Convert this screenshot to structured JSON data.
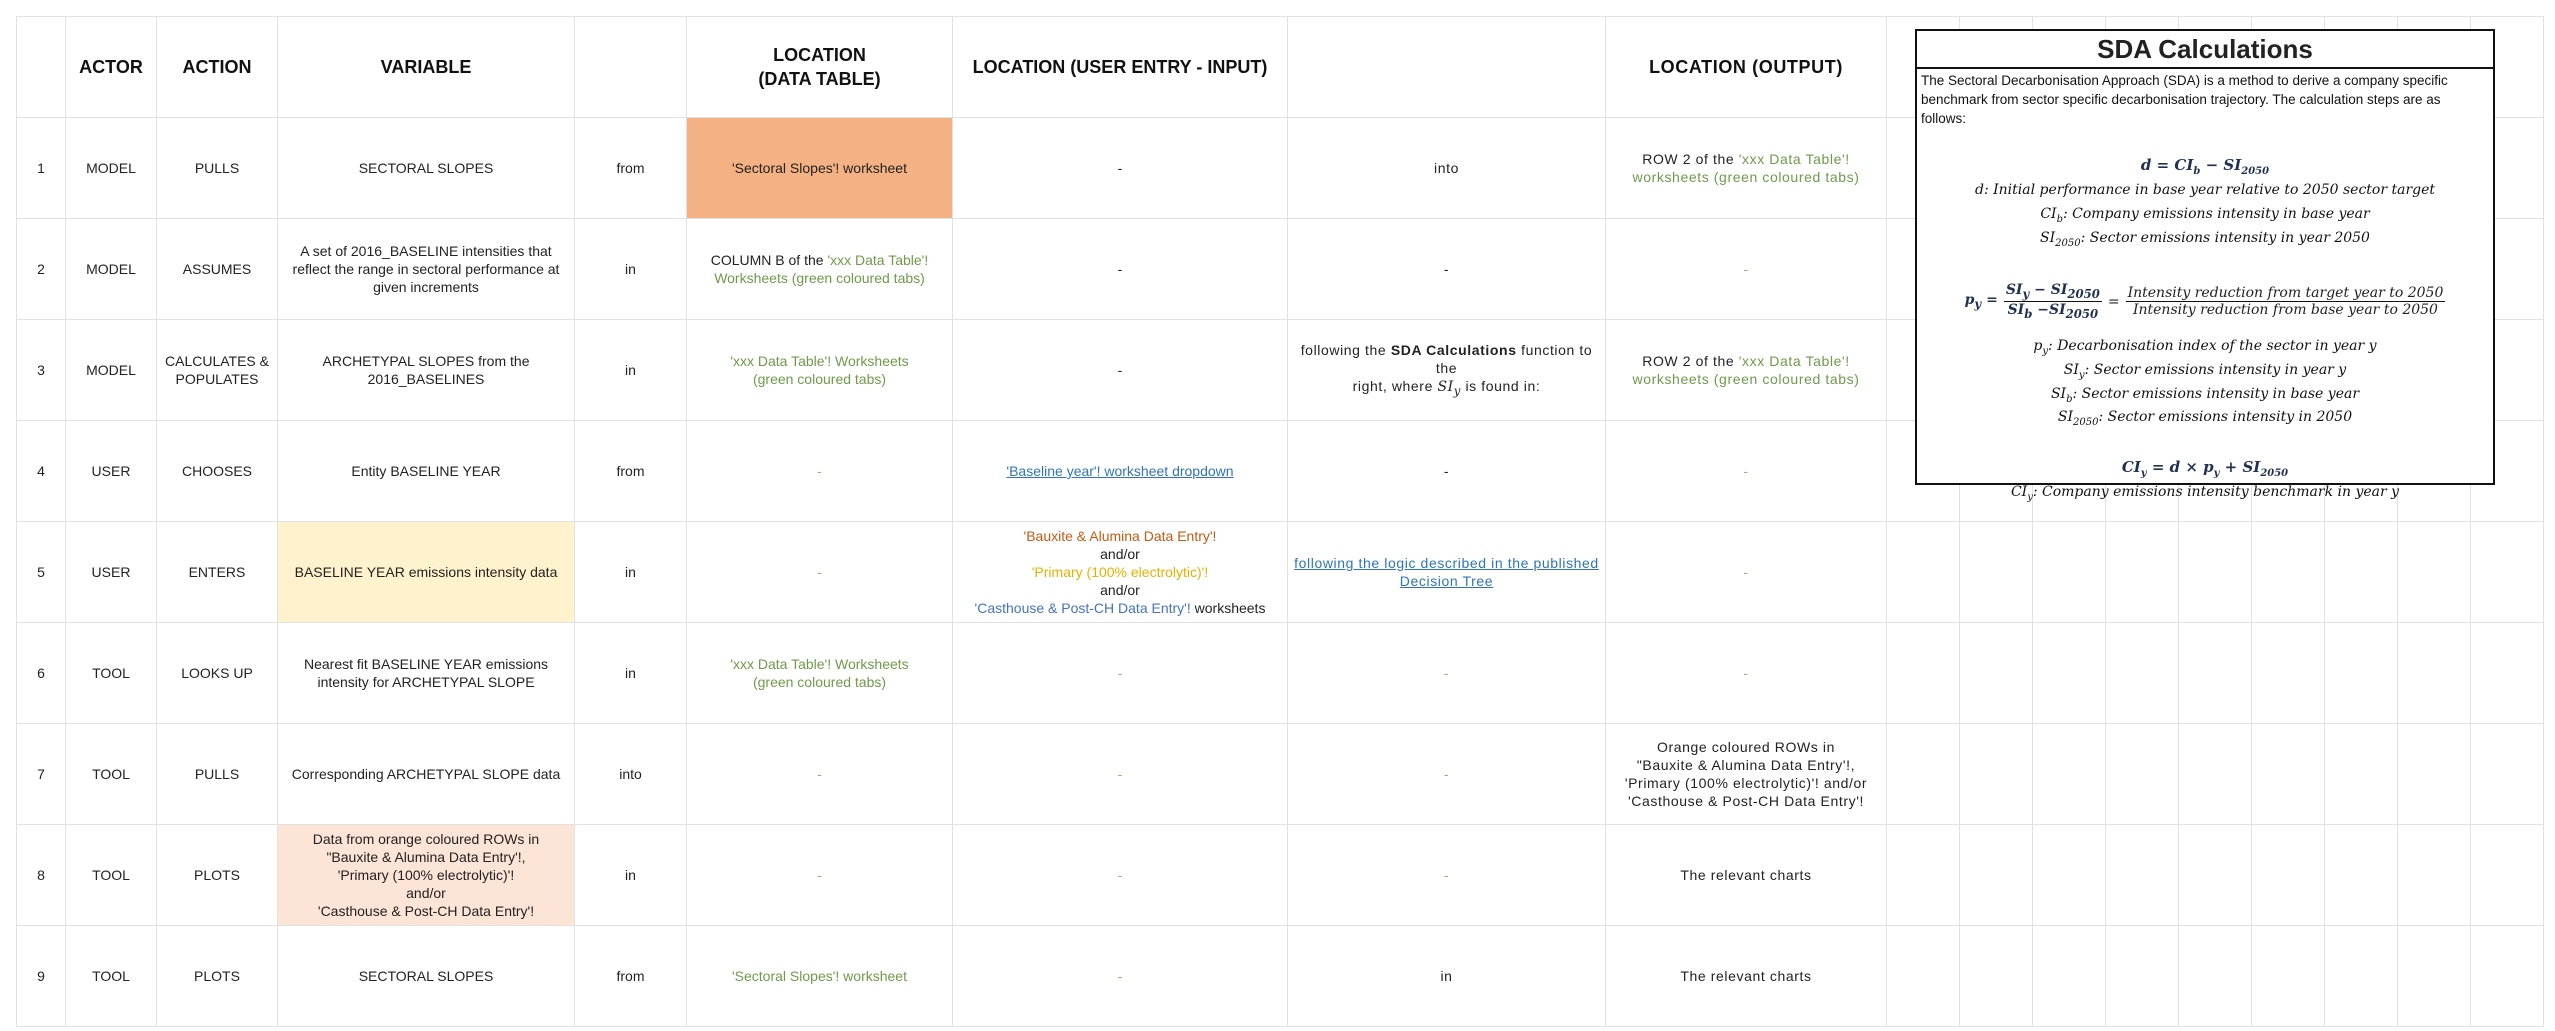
{
  "colors": {
    "green": "#6f9a4b",
    "orange": "#c55a11",
    "yellow": "#e8b000",
    "blue": "#4472c4",
    "link": "#2e75b6",
    "muted": "#a8a878",
    "fill_orange": "#f4b183",
    "fill_yellow": "#fff2cc",
    "fill_peach": "#fce4d6"
  },
  "table": {
    "headers": [
      "",
      "ACTOR",
      "ACTION",
      "VARIABLE",
      "",
      "LOCATION\n(DATA TABLE)",
      "LOCATION (USER ENTRY - INPUT)",
      "",
      "LOCATION (OUTPUT)",
      "",
      "",
      "",
      "",
      "",
      "",
      "",
      "",
      ""
    ],
    "rows": [
      {
        "fills": {
          "5": "fill_orange"
        },
        "cells": [
          [
            [
              {
                "t": "1"
              }
            ]
          ],
          [
            [
              {
                "t": "MODEL"
              }
            ]
          ],
          [
            [
              {
                "t": "PULLS"
              }
            ]
          ],
          [
            [
              {
                "t": "SECTORAL SLOPES"
              }
            ]
          ],
          [
            [
              {
                "t": "from"
              }
            ]
          ],
          [
            [
              {
                "t": "'Sectoral Slopes'! worksheet"
              }
            ]
          ],
          [
            [
              {
                "t": "-"
              }
            ]
          ],
          [
            [
              {
                "t": "into"
              }
            ]
          ],
          [
            [
              {
                "t": "ROW 2 of the "
              },
              {
                "t": "'xxx Data Table'!",
                "c": "green"
              }
            ],
            [
              {
                "t": "worksheets  (green coloured tabs)",
                "c": "green"
              }
            ]
          ]
        ]
      },
      {
        "cells": [
          [
            [
              {
                "t": "2"
              }
            ]
          ],
          [
            [
              {
                "t": "MODEL"
              }
            ]
          ],
          [
            [
              {
                "t": "ASSUMES"
              }
            ]
          ],
          [
            [
              {
                "t": "A set of 2016_BASELINE intensities that"
              }
            ],
            [
              {
                "t": "reflect the range in sectoral performance at"
              }
            ],
            [
              {
                "t": "given increments"
              }
            ]
          ],
          [
            [
              {
                "t": "in"
              }
            ]
          ],
          [
            [
              {
                "t": "COLUMN B of the "
              },
              {
                "t": "'xxx Data Table'!",
                "c": "green"
              }
            ],
            [
              {
                "t": "Worksheets (green coloured tabs)",
                "c": "green"
              }
            ]
          ],
          [
            [
              {
                "t": "-"
              }
            ]
          ],
          [
            [
              {
                "t": "-"
              }
            ]
          ],
          [
            [
              {
                "t": "-",
                "c": "muted"
              }
            ]
          ]
        ]
      },
      {
        "cells": [
          [
            [
              {
                "t": "3"
              }
            ]
          ],
          [
            [
              {
                "t": "MODEL"
              }
            ]
          ],
          [
            [
              {
                "t": "CALCULATES &"
              }
            ],
            [
              {
                "t": "POPULATES"
              }
            ]
          ],
          [
            [
              {
                "t": "ARCHETYPAL SLOPES from the"
              }
            ],
            [
              {
                "t": "2016_BASELINES"
              }
            ]
          ],
          [
            [
              {
                "t": "in"
              }
            ]
          ],
          [
            [
              {
                "t": "'xxx Data Table'! Worksheets",
                "c": "green"
              }
            ],
            [
              {
                "t": "(green coloured tabs)",
                "c": "green"
              }
            ]
          ],
          [
            [
              {
                "t": "-"
              }
            ]
          ],
          [
            [
              {
                "t": "following the "
              },
              {
                "t": "SDA Calculations",
                "b": true
              },
              {
                "t": " function to the"
              }
            ],
            [
              {
                "t": "right, where "
              },
              {
                "t": "SI",
                "i": true
              },
              {
                "t": "y",
                "i": true,
                "sub": true
              },
              {
                "t": " is found in:"
              }
            ]
          ],
          [
            [
              {
                "t": "ROW 2 of the "
              },
              {
                "t": "'xxx Data Table'!",
                "c": "green"
              }
            ],
            [
              {
                "t": "worksheets  (green coloured tabs)",
                "c": "green"
              }
            ]
          ]
        ]
      },
      {
        "cells": [
          [
            [
              {
                "t": "4"
              }
            ]
          ],
          [
            [
              {
                "t": "USER"
              }
            ]
          ],
          [
            [
              {
                "t": "CHOOSES"
              }
            ]
          ],
          [
            [
              {
                "t": "Entity BASELINE YEAR"
              }
            ]
          ],
          [
            [
              {
                "t": "from"
              }
            ]
          ],
          [
            [
              {
                "t": "-",
                "c": "muted"
              }
            ]
          ],
          [
            [
              {
                "t": "'Baseline year'! worksheet dropdown",
                "c": "link",
                "link": true
              }
            ]
          ],
          [
            [
              {
                "t": "-"
              }
            ]
          ],
          [
            [
              {
                "t": "-",
                "c": "muted"
              }
            ]
          ]
        ]
      },
      {
        "fills": {
          "3": "fill_yellow"
        },
        "cells": [
          [
            [
              {
                "t": "5"
              }
            ]
          ],
          [
            [
              {
                "t": "USER"
              }
            ]
          ],
          [
            [
              {
                "t": "ENTERS"
              }
            ]
          ],
          [
            [
              {
                "t": "BASELINE YEAR emissions intensity data"
              }
            ]
          ],
          [
            [
              {
                "t": "in"
              }
            ]
          ],
          [
            [
              {
                "t": "-",
                "c": "muted"
              }
            ]
          ],
          [
            [
              {
                "t": "'Bauxite & Alumina Data Entry'!",
                "c": "orange"
              }
            ],
            [
              {
                "t": "and/or"
              }
            ],
            [
              {
                "t": "'Primary (100% electrolytic)'!",
                "c": "yellow"
              }
            ],
            [
              {
                "t": "and/or"
              }
            ],
            [
              {
                "t": "'Casthouse & Post-CH Data Entry'!",
                "c": "blue"
              },
              {
                "t": " worksheets"
              }
            ]
          ],
          [
            [
              {
                "t": "following the logic described in the published ",
                "c": "link",
                "link": true
              }
            ],
            [
              {
                "t": "Decision Tree",
                "c": "link",
                "link": true
              }
            ]
          ],
          [
            [
              {
                "t": "-",
                "c": "muted"
              }
            ]
          ]
        ]
      },
      {
        "cells": [
          [
            [
              {
                "t": "6"
              }
            ]
          ],
          [
            [
              {
                "t": "TOOL"
              }
            ]
          ],
          [
            [
              {
                "t": "LOOKS UP"
              }
            ]
          ],
          [
            [
              {
                "t": "Nearest fit BASELINE YEAR emissions"
              }
            ],
            [
              {
                "t": "intensity for ARCHETYPAL SLOPE"
              }
            ]
          ],
          [
            [
              {
                "t": "in"
              }
            ]
          ],
          [
            [
              {
                "t": "'xxx Data Table'! Worksheets",
                "c": "green"
              }
            ],
            [
              {
                "t": "(green coloured tabs)",
                "c": "green"
              }
            ]
          ],
          [
            [
              {
                "t": "-",
                "c": "muted"
              }
            ]
          ],
          [
            [
              {
                "t": "-",
                "c": "muted"
              }
            ]
          ],
          [
            [
              {
                "t": "-",
                "c": "muted"
              }
            ]
          ]
        ]
      },
      {
        "cells": [
          [
            [
              {
                "t": "7"
              }
            ]
          ],
          [
            [
              {
                "t": "TOOL"
              }
            ]
          ],
          [
            [
              {
                "t": "PULLS"
              }
            ]
          ],
          [
            [
              {
                "t": "Corresponding ARCHETYPAL SLOPE data"
              }
            ]
          ],
          [
            [
              {
                "t": "into"
              }
            ]
          ],
          [
            [
              {
                "t": "-",
                "c": "muted"
              }
            ]
          ],
          [
            [
              {
                "t": "-",
                "c": "muted"
              }
            ]
          ],
          [
            [
              {
                "t": "-",
                "c": "muted"
              }
            ]
          ],
          [
            [
              {
                "t": "Orange coloured ROWs in"
              }
            ],
            [
              {
                "t": "\"Bauxite & Alumina Data Entry'!,"
              }
            ],
            [
              {
                "t": "'Primary (100% electrolytic)'! and/or"
              }
            ],
            [
              {
                "t": "'Casthouse & Post-CH Data Entry'!"
              }
            ]
          ]
        ]
      },
      {
        "fills": {
          "3": "fill_peach"
        },
        "cells": [
          [
            [
              {
                "t": "8"
              }
            ]
          ],
          [
            [
              {
                "t": "TOOL"
              }
            ]
          ],
          [
            [
              {
                "t": "PLOTS"
              }
            ]
          ],
          [
            [
              {
                "t": "Data from orange coloured ROWs in"
              }
            ],
            [
              {
                "t": "\"Bauxite & Alumina Data Entry'!,"
              }
            ],
            [
              {
                "t": "'Primary (100% electrolytic)'!"
              }
            ],
            [
              {
                "t": "and/or"
              }
            ],
            [
              {
                "t": "'Casthouse & Post-CH Data Entry'!"
              }
            ]
          ],
          [
            [
              {
                "t": "in"
              }
            ]
          ],
          [
            [
              {
                "t": "-",
                "c": "muted"
              }
            ]
          ],
          [
            [
              {
                "t": "-",
                "c": "muted"
              }
            ]
          ],
          [
            [
              {
                "t": "-",
                "c": "muted"
              }
            ]
          ],
          [
            [
              {
                "t": "The relevant charts"
              }
            ]
          ]
        ]
      },
      {
        "cells": [
          [
            [
              {
                "t": "9"
              }
            ]
          ],
          [
            [
              {
                "t": "TOOL"
              }
            ]
          ],
          [
            [
              {
                "t": "PLOTS"
              }
            ]
          ],
          [
            [
              {
                "t": "SECTORAL SLOPES"
              }
            ]
          ],
          [
            [
              {
                "t": "from"
              }
            ]
          ],
          [
            [
              {
                "t": "'Sectoral Slopes'! worksheet",
                "c": "green"
              }
            ]
          ],
          [
            [
              {
                "t": "-",
                "c": "muted"
              }
            ]
          ],
          [
            [
              {
                "t": "in"
              }
            ]
          ],
          [
            [
              {
                "t": "The relevant charts"
              }
            ]
          ]
        ]
      }
    ]
  },
  "sda": {
    "title": "SDA Calculations",
    "description": "The Sectoral Decarbonisation Approach (SDA) is a method to derive a company specific benchmark from sector specific decarbonisation trajectory. The calculation steps are as follows:",
    "f1": {
      "a": "d = CI",
      "a_sub": "b",
      "b": " − SI",
      "b_sub": "2050"
    },
    "f1_defs": [
      {
        "s": "d",
        "sub": "",
        "t": ": Initial performance in base year relative to 2050 sector target"
      },
      {
        "s": "CI",
        "sub": "b",
        "t": ": Company emissions intensity in base year"
      },
      {
        "s": "SI",
        "sub": "2050",
        "t": ": Sector emissions intensity in year 2050"
      }
    ],
    "f2": {
      "lhs": "p",
      "lhs_sub": "y",
      "num": "SI",
      "num_sub": "y",
      "num2": " − SI",
      "num2_sub": "2050",
      "den": "SI",
      "den_sub": "b",
      "den2": " −SI",
      "den2_sub": "2050",
      "rnum": "Intensity reduction from target year to 2050",
      "rden": "Intensity reduction from base year to 2050"
    },
    "f2_defs": [
      {
        "s": "p",
        "sub": "y",
        "t": ": Decarbonisation index of the sector in year y"
      },
      {
        "s": "SI",
        "sub": "y",
        "t": ": Sector emissions intensity in year y"
      },
      {
        "s": "SI",
        "sub": "b",
        "t": ": Sector emissions intensity in base year"
      },
      {
        "s": "SI",
        "sub": "2050",
        "t": ": Sector emissions intensity in 2050"
      }
    ],
    "f3": {
      "a": "CI",
      "a_sub": "y",
      "b": " = d × p",
      "b_sub": "y",
      "c": " + SI",
      "c_sub": "2050"
    },
    "f3_defs": [
      {
        "s": "CI",
        "sub": "y",
        "t": ": Company emissions intensity benchmark in year y"
      }
    ]
  }
}
